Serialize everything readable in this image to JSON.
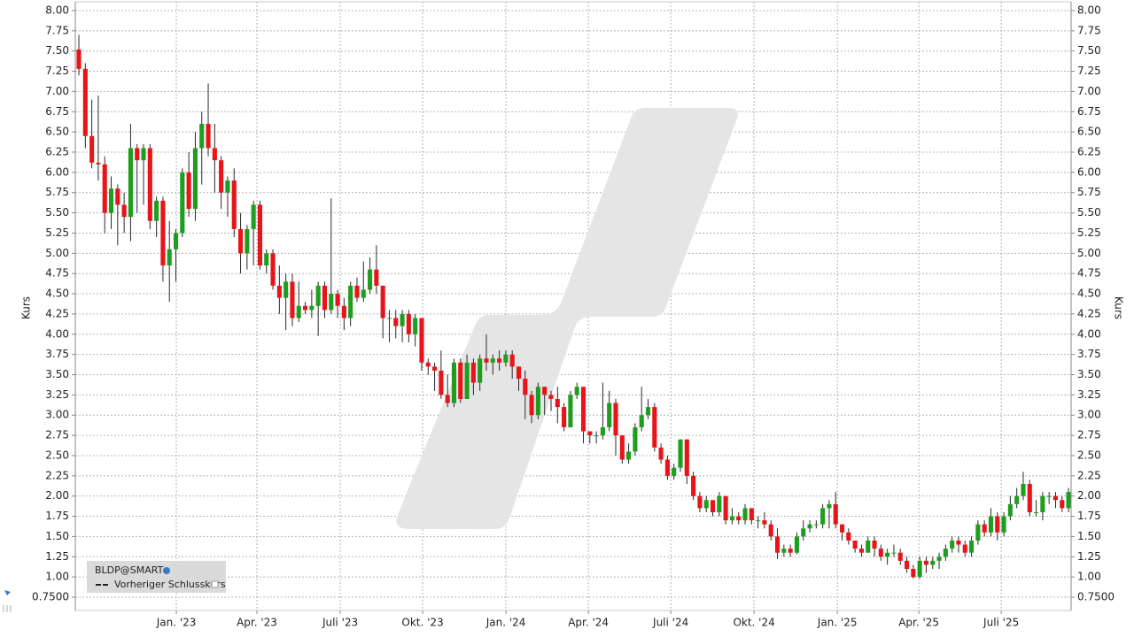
{
  "chart_data": {
    "type": "candlestick",
    "y_label": "Kurs",
    "up_color": "#1e9e1e",
    "down_color": "#e8141a",
    "wick_color": "#2a2a2a",
    "grid": true,
    "legend": "bottom-left",
    "reference_line": {
      "name": "Vorheriger Schlusskurs"
    },
    "xlim": [
      -0.55,
      153.4
    ],
    "xticks": [
      {
        "value": 15.07,
        "label": "Jan. '23"
      },
      {
        "value": 27.53,
        "label": "Apr. '23"
      },
      {
        "value": 40.41,
        "label": "Juli '23"
      },
      {
        "value": 53.15,
        "label": "Okt. '23"
      },
      {
        "value": 66.03,
        "label": "Jan. '24"
      },
      {
        "value": 78.77,
        "label": "Apr. '24"
      },
      {
        "value": 91.51,
        "label": "Juli '24"
      },
      {
        "value": 104.38,
        "label": "Okt. '24"
      },
      {
        "value": 117.26,
        "label": "Jan. '25"
      },
      {
        "value": 129.86,
        "label": "Apr. '25"
      },
      {
        "value": 142.6,
        "label": "Juli '25"
      }
    ],
    "ylim": [
      0.586,
      8.109
    ],
    "yticks": [
      {
        "value": 8,
        "label": "8.00"
      },
      {
        "value": 7.75,
        "label": "7.75"
      },
      {
        "value": 7.5,
        "label": "7.50"
      },
      {
        "value": 7.25,
        "label": "7.25"
      },
      {
        "value": 7,
        "label": "7.00"
      },
      {
        "value": 6.75,
        "label": "6.75"
      },
      {
        "value": 6.5,
        "label": "6.50"
      },
      {
        "value": 6.25,
        "label": "6.25"
      },
      {
        "value": 6,
        "label": "6.00"
      },
      {
        "value": 5.75,
        "label": "5.75"
      },
      {
        "value": 5.5,
        "label": "5.50"
      },
      {
        "value": 5.25,
        "label": "5.25"
      },
      {
        "value": 5,
        "label": "5.00"
      },
      {
        "value": 4.75,
        "label": "4.75"
      },
      {
        "value": 4.5,
        "label": "4.50"
      },
      {
        "value": 4.25,
        "label": "4.25"
      },
      {
        "value": 4,
        "label": "4.00"
      },
      {
        "value": 3.75,
        "label": "3.75"
      },
      {
        "value": 3.5,
        "label": "3.50"
      },
      {
        "value": 3.25,
        "label": "3.25"
      },
      {
        "value": 3,
        "label": "3.00"
      },
      {
        "value": 2.75,
        "label": "2.75"
      },
      {
        "value": 2.5,
        "label": "2.50"
      },
      {
        "value": 2.25,
        "label": "2.25"
      },
      {
        "value": 2,
        "label": "2.00"
      },
      {
        "value": 1.75,
        "label": "1.75"
      },
      {
        "value": 1.5,
        "label": "1.50"
      },
      {
        "value": 1.25,
        "label": "1.25"
      },
      {
        "value": 1,
        "label": "1.00"
      },
      {
        "value": 0.75,
        "label": "0.7500"
      }
    ],
    "series": [
      {
        "name": "BLDP@SMART",
        "open": [
          7.52,
          7.28,
          6.45,
          6.12,
          6.1,
          5.5,
          5.8,
          5.6,
          5.45,
          6.3,
          6.15,
          6.3,
          5.4,
          5.65,
          4.85,
          5.05,
          5.25,
          6.0,
          5.55,
          6.3,
          6.6,
          6.3,
          6.15,
          5.75,
          5.9,
          5.3,
          5.0,
          5.3,
          5.6,
          4.85,
          5.0,
          4.6,
          4.45,
          4.65,
          4.2,
          4.35,
          4.3,
          4.35,
          4.6,
          4.3,
          4.5,
          4.35,
          4.2,
          4.6,
          4.45,
          4.55,
          4.8,
          4.6,
          4.2,
          4.2,
          4.1,
          4.25,
          4.0,
          4.2,
          3.65,
          3.6,
          3.55,
          3.25,
          3.15,
          3.65,
          3.2,
          3.65,
          3.4,
          3.7,
          3.65,
          3.7,
          3.65,
          3.75,
          3.6,
          3.45,
          3.25,
          3.0,
          3.35,
          3.25,
          3.2,
          3.1,
          2.85,
          3.25,
          3.35,
          2.8,
          2.75,
          2.75,
          2.85,
          3.15,
          2.75,
          2.45,
          2.55,
          2.85,
          3.0,
          3.1,
          2.6,
          2.45,
          2.25,
          2.35,
          2.7,
          2.25,
          2.0,
          1.85,
          1.95,
          1.8,
          2.0,
          1.7,
          1.75,
          1.7,
          1.85,
          1.7,
          1.7,
          1.65,
          1.5,
          1.3,
          1.35,
          1.3,
          1.5,
          1.6,
          1.65,
          1.65,
          1.85,
          1.9,
          1.65,
          1.55,
          1.45,
          1.35,
          1.3,
          1.45,
          1.35,
          1.25,
          1.3,
          1.3,
          1.2,
          1.1,
          1.0,
          1.2,
          1.15,
          1.2,
          1.25,
          1.35,
          1.45,
          1.4,
          1.3,
          1.45,
          1.65,
          1.55,
          1.75,
          1.55,
          1.75,
          1.9,
          2.0,
          2.15,
          1.8,
          1.8,
          2.0,
          2.0,
          1.95,
          1.85
        ],
        "high": [
          7.7,
          7.35,
          6.9,
          6.95,
          6.2,
          5.95,
          5.85,
          5.75,
          6.6,
          6.35,
          6.35,
          6.35,
          5.7,
          5.7,
          5.4,
          5.3,
          6.05,
          6.25,
          6.5,
          6.75,
          7.1,
          6.6,
          6.2,
          5.95,
          6.05,
          5.5,
          5.35,
          5.65,
          5.65,
          5.05,
          5.05,
          4.85,
          4.75,
          4.75,
          4.65,
          4.4,
          4.55,
          4.65,
          4.65,
          5.68,
          4.55,
          4.45,
          4.65,
          4.7,
          4.9,
          4.95,
          5.1,
          4.6,
          4.3,
          4.3,
          4.3,
          4.3,
          4.25,
          4.2,
          3.7,
          3.65,
          3.8,
          3.5,
          3.7,
          3.7,
          3.75,
          3.7,
          3.75,
          4.0,
          3.75,
          3.8,
          3.8,
          3.8,
          3.6,
          3.55,
          3.3,
          3.4,
          3.35,
          3.3,
          3.35,
          3.15,
          3.3,
          3.4,
          3.35,
          2.8,
          2.8,
          3.4,
          3.3,
          3.2,
          2.75,
          2.65,
          2.9,
          3.35,
          3.2,
          3.15,
          2.65,
          2.5,
          2.4,
          2.7,
          2.7,
          2.3,
          2.05,
          2.0,
          1.95,
          2.05,
          2.0,
          1.85,
          1.8,
          1.9,
          1.85,
          1.75,
          1.8,
          1.7,
          1.6,
          1.4,
          1.4,
          1.55,
          1.7,
          1.7,
          1.7,
          1.9,
          1.95,
          2.05,
          1.65,
          1.6,
          1.45,
          1.4,
          1.5,
          1.5,
          1.4,
          1.35,
          1.4,
          1.35,
          1.25,
          1.15,
          1.25,
          1.25,
          1.25,
          1.3,
          1.4,
          1.5,
          1.5,
          1.45,
          1.5,
          1.7,
          1.7,
          1.85,
          1.8,
          1.8,
          2.0,
          2.1,
          2.3,
          2.2,
          1.95,
          2.05,
          2.05,
          2.05,
          2.0,
          2.1
        ],
        "low": [
          7.2,
          6.3,
          6.05,
          5.9,
          5.25,
          5.3,
          5.1,
          5.25,
          5.15,
          5.5,
          5.6,
          5.3,
          5.2,
          4.65,
          4.4,
          4.65,
          5.2,
          5.45,
          5.4,
          5.85,
          6.2,
          5.75,
          5.55,
          5.45,
          5.2,
          4.75,
          4.8,
          4.85,
          4.8,
          4.75,
          4.55,
          4.25,
          4.05,
          4.1,
          4.15,
          4.25,
          4.2,
          3.98,
          4.2,
          4.25,
          4.2,
          4.05,
          4.1,
          4.4,
          4.4,
          4.5,
          4.5,
          3.95,
          3.9,
          3.95,
          3.9,
          3.9,
          3.85,
          3.55,
          3.5,
          3.3,
          3.2,
          3.1,
          3.1,
          3.15,
          3.2,
          3.25,
          3.3,
          3.55,
          3.5,
          3.55,
          3.6,
          3.45,
          3.3,
          2.95,
          2.9,
          2.95,
          3.0,
          3.05,
          2.9,
          2.8,
          2.85,
          3.2,
          2.65,
          2.65,
          2.65,
          2.7,
          2.8,
          2.5,
          2.4,
          2.4,
          2.5,
          2.8,
          2.95,
          2.55,
          2.4,
          2.2,
          2.2,
          2.3,
          2.15,
          1.95,
          1.8,
          1.8,
          1.75,
          1.75,
          1.65,
          1.65,
          1.65,
          1.65,
          1.65,
          1.6,
          1.6,
          1.45,
          1.22,
          1.25,
          1.25,
          1.28,
          1.45,
          1.55,
          1.6,
          1.6,
          1.6,
          1.6,
          1.45,
          1.4,
          1.3,
          1.25,
          1.3,
          1.25,
          1.2,
          1.15,
          1.25,
          1.15,
          1.05,
          0.98,
          0.98,
          1.05,
          1.1,
          1.1,
          1.2,
          1.3,
          1.3,
          1.25,
          1.25,
          1.4,
          1.5,
          1.5,
          1.45,
          1.5,
          1.7,
          1.85,
          1.95,
          1.75,
          1.75,
          1.7,
          1.9,
          1.85,
          1.8,
          1.8
        ],
        "close": [
          7.28,
          6.45,
          6.12,
          6.1,
          5.5,
          5.8,
          5.6,
          5.45,
          6.3,
          6.15,
          6.3,
          5.4,
          5.65,
          4.85,
          5.05,
          5.25,
          6.0,
          5.55,
          6.3,
          6.6,
          6.3,
          6.15,
          5.75,
          5.9,
          5.3,
          5.0,
          5.3,
          5.6,
          4.85,
          5.0,
          4.6,
          4.45,
          4.65,
          4.2,
          4.35,
          4.3,
          4.35,
          4.6,
          4.3,
          4.5,
          4.35,
          4.2,
          4.6,
          4.45,
          4.55,
          4.8,
          4.6,
          4.2,
          4.2,
          4.1,
          4.25,
          4.0,
          4.2,
          3.65,
          3.6,
          3.55,
          3.25,
          3.15,
          3.65,
          3.2,
          3.65,
          3.4,
          3.7,
          3.65,
          3.7,
          3.65,
          3.75,
          3.6,
          3.45,
          3.25,
          3.0,
          3.35,
          3.25,
          3.2,
          3.1,
          2.85,
          3.25,
          3.35,
          2.8,
          2.75,
          2.75,
          2.85,
          3.15,
          2.75,
          2.45,
          2.55,
          2.85,
          3.0,
          3.1,
          2.6,
          2.45,
          2.25,
          2.35,
          2.7,
          2.25,
          2.0,
          1.85,
          1.95,
          1.8,
          2.0,
          1.7,
          1.75,
          1.7,
          1.85,
          1.7,
          1.7,
          1.65,
          1.5,
          1.3,
          1.35,
          1.3,
          1.5,
          1.6,
          1.65,
          1.65,
          1.85,
          1.9,
          1.65,
          1.55,
          1.45,
          1.35,
          1.3,
          1.45,
          1.35,
          1.25,
          1.3,
          1.3,
          1.2,
          1.1,
          1.0,
          1.2,
          1.15,
          1.2,
          1.25,
          1.35,
          1.45,
          1.4,
          1.3,
          1.45,
          1.65,
          1.55,
          1.75,
          1.55,
          1.75,
          1.9,
          2.0,
          2.15,
          1.8,
          1.8,
          2.0,
          2.0,
          1.95,
          1.85,
          2.05
        ]
      }
    ]
  }
}
